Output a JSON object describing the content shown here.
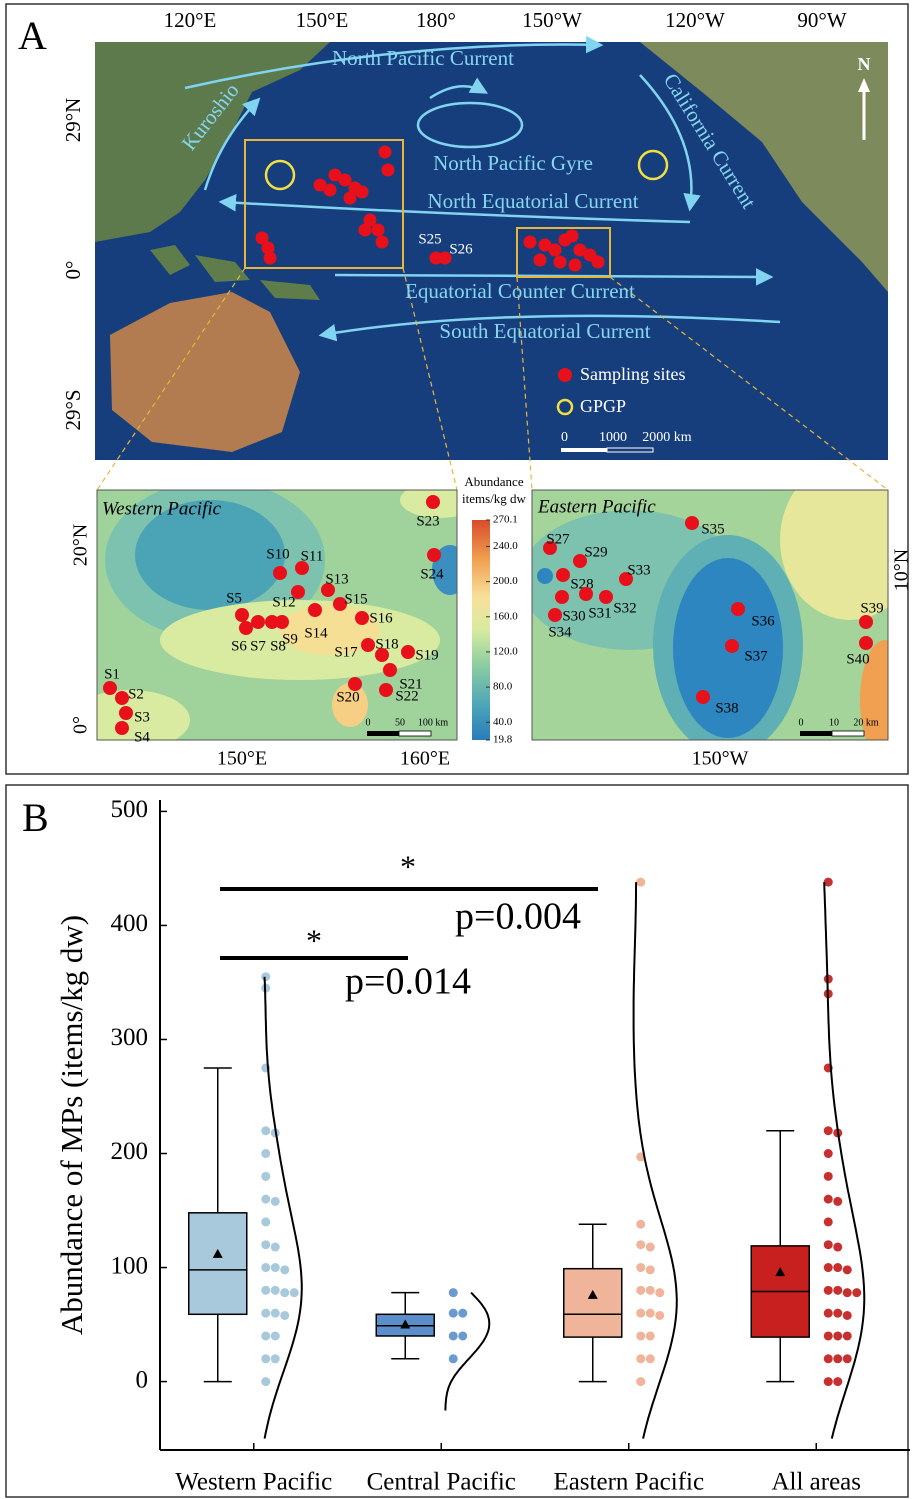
{
  "map": {
    "panel_label": "A",
    "lon_labels": [
      "120°E",
      "150°E",
      "180°",
      "150°W",
      "120°W",
      "90°W"
    ],
    "lat_labels": [
      "29°N",
      "0°",
      "29°S"
    ],
    "currents": [
      "North Pacific Current",
      "Kuroshio",
      "California Current",
      "North Pacific Gyre",
      "North Equatorial Current",
      "Equatorial Counter Current",
      "South Equatorial Current"
    ],
    "north": "N",
    "legend": [
      "Sampling sites",
      "GPGP"
    ],
    "scale": [
      "0",
      "1000",
      "2000 km"
    ],
    "sites_main": [
      "S25",
      "S26"
    ],
    "western": {
      "title": "Western Pacific",
      "x_labels": [
        "150°E",
        "160°E"
      ],
      "y_labels": [
        "20°N",
        "0°"
      ],
      "sites": [
        "S1",
        "S2",
        "S3",
        "S4",
        "S5",
        "S6",
        "S7",
        "S8",
        "S9",
        "S10",
        "S11",
        "S12",
        "S13",
        "S14",
        "S15",
        "S16",
        "S17",
        "S18",
        "S19",
        "S20",
        "S21",
        "S22",
        "S23",
        "S24"
      ],
      "scale": [
        "0",
        "50",
        "100 km"
      ]
    },
    "eastern": {
      "title": "Eastern Pacific",
      "x_labels": [
        "150°W"
      ],
      "y_labels": [
        "10°N"
      ],
      "sites": [
        "S27",
        "S28",
        "S29",
        "S30",
        "S31",
        "S32",
        "S33",
        "S34",
        "S35",
        "S36",
        "S37",
        "S38",
        "S39",
        "S40"
      ],
      "scale": [
        "0",
        "10",
        "20 km"
      ]
    },
    "colorbar": {
      "title": "Abundance",
      "unit": "items/kg dw",
      "lim": [
        19.8,
        270.1
      ],
      "ticks": [
        270.1,
        {
          "value": 240,
          "label": "240.0"
        },
        {
          "value": 200,
          "label": "200.0"
        },
        {
          "value": 160,
          "label": "160.0"
        },
        {
          "value": 120,
          "label": "120.0"
        },
        {
          "value": 80,
          "label": "80.0"
        },
        {
          "value": 40,
          "label": "40.0"
        },
        19.8
      ]
    }
  },
  "chart_data": {
    "type": "box",
    "panel_label": "B",
    "y_label": "Abundance of MPs (items/kg dw)",
    "categories": [
      "Western Pacific",
      "Central Pacific",
      "Eastern Pacific",
      "All areas"
    ],
    "ylim": [
      -60,
      510
    ],
    "yticks": [
      0,
      100,
      200,
      300,
      400,
      500
    ],
    "boxes": [
      {
        "color": "#a8c8dc",
        "point_color": "#a8c8dc",
        "min": 0,
        "q1": 59,
        "median": 98,
        "q3": 148,
        "max": 275,
        "mean": 112,
        "points": [
          355,
          345,
          275,
          220,
          218,
          200,
          180,
          160,
          158,
          140,
          120,
          118,
          100,
          100,
          98,
          80,
          80,
          78,
          78,
          60,
          60,
          58,
          40,
          40,
          20,
          20,
          0
        ]
      },
      {
        "color": "#5b8fcc",
        "point_color": "#6a9ad0",
        "min": 20,
        "q1": 40,
        "median": 49,
        "q3": 59,
        "max": 78,
        "mean": 50,
        "points": [
          78,
          60,
          60,
          40,
          40,
          20
        ]
      },
      {
        "color": "#f0b49a",
        "point_color": "#efb49a",
        "min": 0,
        "q1": 39,
        "median": 59,
        "q3": 99,
        "max": 138,
        "mean": 76,
        "points": [
          438,
          197,
          138,
          120,
          118,
          100,
          98,
          80,
          80,
          78,
          60,
          60,
          58,
          40,
          40,
          20,
          20,
          0
        ]
      },
      {
        "color": "#c8201e",
        "point_color": "#c83030",
        "min": 0,
        "q1": 39,
        "median": 79,
        "q3": 119,
        "max": 220,
        "mean": 96,
        "points": [
          438,
          353,
          340,
          275,
          220,
          218,
          200,
          180,
          160,
          158,
          140,
          120,
          118,
          100,
          100,
          98,
          80,
          80,
          78,
          78,
          60,
          60,
          58,
          40,
          40,
          40,
          20,
          20,
          20,
          0,
          0
        ]
      }
    ],
    "annotations": [
      {
        "label": "*",
        "p": "p=0.004"
      },
      {
        "label": "*",
        "p": "p=0.014"
      }
    ]
  }
}
